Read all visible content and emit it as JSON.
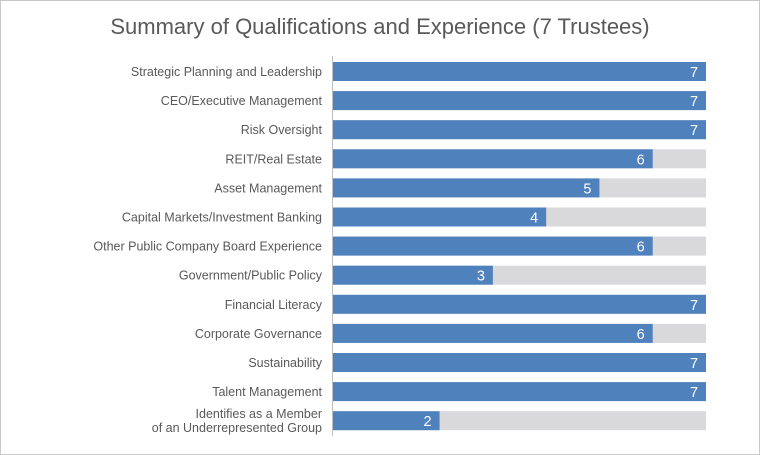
{
  "chart_data": {
    "type": "bar",
    "orientation": "horizontal",
    "title": "Summary of Qualifications and Experience (7 Trustees)",
    "xlim": [
      0,
      7
    ],
    "grid": false,
    "categories": [
      "Strategic Planning and Leadership",
      "CEO/Executive Management",
      "Risk Oversight",
      "REIT/Real Estate",
      "Asset Management",
      "Capital Markets/Investment Banking",
      "Other Public Company Board Experience",
      "Government/Public Policy",
      "Financial Literacy",
      "Corporate Governance",
      "Sustainability",
      "Talent Management",
      "Identifies as a Member\nof an Underrepresented Group"
    ],
    "values": [
      7,
      7,
      7,
      6,
      5,
      4,
      6,
      3,
      7,
      6,
      7,
      7,
      2
    ],
    "max_value": 7,
    "bar_color": "#4f81bd",
    "track_color": "#d9d9db",
    "label_color": "#595959",
    "value_label_color": "#ffffff"
  }
}
